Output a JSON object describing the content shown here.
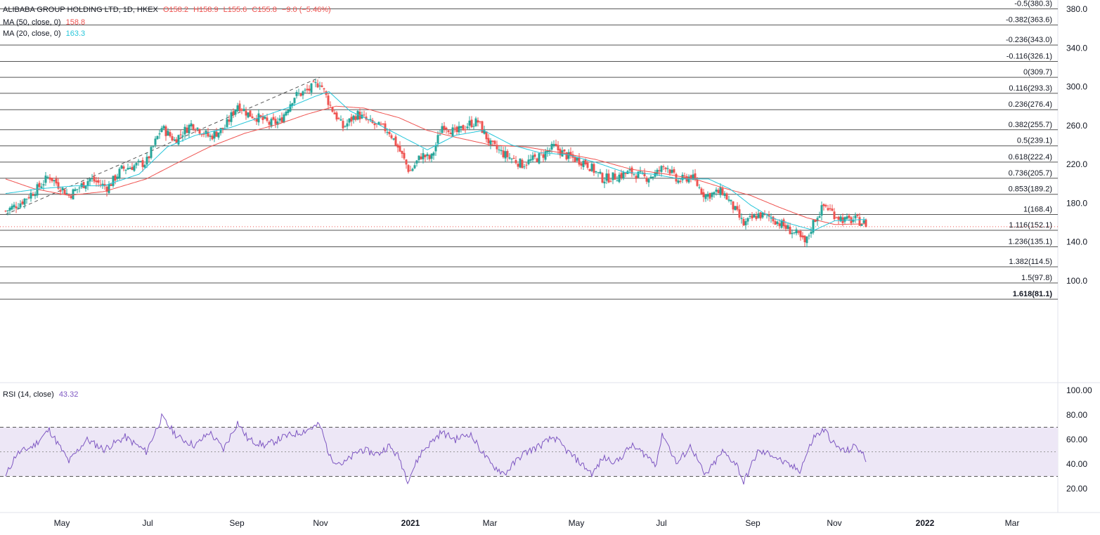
{
  "header": {
    "symbol": "ALIBABA GROUP HOLDING LTD, 1D, HKEX",
    "ohlc": {
      "o": "O158.2",
      "h": "H158.9",
      "l": "L155.6",
      "c": "C155.8",
      "chg": "−9.0 (−5.46%)"
    },
    "ma50": {
      "label": "MA (50, close, 0)",
      "value": "158.8"
    },
    "ma20": {
      "label": "MA (20, close, 0)",
      "value": "163.3"
    },
    "rsi": {
      "label": "RSI (14, close)",
      "value": "43.32"
    }
  },
  "colors": {
    "up": "#26a69a",
    "down": "#ef5350",
    "ma50": "#ef5350",
    "ma20": "#26c6da",
    "rsi": "#7e57c2",
    "rsi_band": "#ede7f6",
    "fib_line": "#555555",
    "trend_line": "#555555",
    "price_line": "#ef5350"
  },
  "chart_data": [
    {
      "type": "candlestick",
      "title": "ALIBABA GROUP HOLDING LTD, 1D, HKEX",
      "x_ticks": [
        "May",
        "Jul",
        "Sep",
        "Nov",
        "2021",
        "Mar",
        "May",
        "Jul",
        "Sep",
        "Nov",
        "2022",
        "Mar"
      ],
      "y_ticks": [
        "380.0",
        "340.0",
        "300.0",
        "260.0",
        "220.0",
        "180.0",
        "140.0",
        "100.0"
      ],
      "ylim": [
        75,
        384
      ],
      "last_price": 155.8,
      "fib_levels": [
        {
          "label": "-0.5(380.3)",
          "value": 380.3
        },
        {
          "label": "-0.382(363.6)",
          "value": 363.6
        },
        {
          "label": "-0.236(343.0)",
          "value": 343.0
        },
        {
          "label": "-0.116(326.1)",
          "value": 326.1
        },
        {
          "label": "0(309.7)",
          "value": 309.7
        },
        {
          "label": "0.116(293.3)",
          "value": 293.3
        },
        {
          "label": "0.236(276.4)",
          "value": 276.4
        },
        {
          "label": "0.382(255.7)",
          "value": 255.7
        },
        {
          "label": "0.5(239.1)",
          "value": 239.1
        },
        {
          "label": "0.618(222.4)",
          "value": 222.4
        },
        {
          "label": "0.736(205.7)",
          "value": 205.7
        },
        {
          "label": "0.853(189.2)",
          "value": 189.2
        },
        {
          "label": "1(168.4)",
          "value": 168.4
        },
        {
          "label": "1.116(152.1)",
          "value": 152.1
        },
        {
          "label": "1.236(135.1)",
          "value": 135.1
        },
        {
          "label": "1.382(114.5)",
          "value": 114.5
        },
        {
          "label": "1.5(97.8)",
          "value": 97.8
        },
        {
          "label": "1.618(81.1)",
          "value": 81.1
        }
      ],
      "trend_line": [
        [
          0,
          168.4
        ],
        [
          447,
          309.7
        ]
      ],
      "close_waypoints": [
        [
          0,
          172
        ],
        [
          20,
          180
        ],
        [
          45,
          195
        ],
        [
          62,
          208
        ],
        [
          90,
          188
        ],
        [
          120,
          205
        ],
        [
          145,
          196
        ],
        [
          165,
          215
        ],
        [
          200,
          222
        ],
        [
          222,
          258
        ],
        [
          240,
          245
        ],
        [
          265,
          262
        ],
        [
          290,
          248
        ],
        [
          312,
          258
        ],
        [
          330,
          282
        ],
        [
          345,
          272
        ],
        [
          360,
          268
        ],
        [
          375,
          262
        ],
        [
          390,
          264
        ],
        [
          410,
          290
        ],
        [
          430,
          296
        ],
        [
          447,
          305
        ],
        [
          462,
          280
        ],
        [
          480,
          258
        ],
        [
          500,
          272
        ],
        [
          520,
          262
        ],
        [
          545,
          255
        ],
        [
          560,
          235
        ],
        [
          575,
          212
        ],
        [
          592,
          230
        ],
        [
          605,
          225
        ],
        [
          622,
          262
        ],
        [
          640,
          252
        ],
        [
          660,
          262
        ],
        [
          672,
          264
        ],
        [
          690,
          240
        ],
        [
          710,
          230
        ],
        [
          735,
          220
        ],
        [
          760,
          228
        ],
        [
          780,
          238
        ],
        [
          800,
          228
        ],
        [
          825,
          222
        ],
        [
          850,
          205
        ],
        [
          870,
          208
        ],
        [
          890,
          212
        ],
        [
          910,
          206
        ],
        [
          925,
          210
        ],
        [
          940,
          220
        ],
        [
          955,
          202
        ],
        [
          975,
          208
        ],
        [
          995,
          188
        ],
        [
          1020,
          192
        ],
        [
          1035,
          176
        ],
        [
          1050,
          158
        ],
        [
          1070,
          168
        ],
        [
          1090,
          165
        ],
        [
          1110,
          155
        ],
        [
          1125,
          148
        ],
        [
          1138,
          138
        ],
        [
          1150,
          162
        ],
        [
          1165,
          178
        ],
        [
          1180,
          168
        ],
        [
          1195,
          162
        ],
        [
          1210,
          163
        ],
        [
          1225,
          158
        ]
      ],
      "ma50_waypoints": [
        [
          0,
          205
        ],
        [
          40,
          195
        ],
        [
          90,
          188
        ],
        [
          140,
          192
        ],
        [
          200,
          205
        ],
        [
          240,
          220
        ],
        [
          290,
          238
        ],
        [
          340,
          252
        ],
        [
          390,
          262
        ],
        [
          430,
          272
        ],
        [
          470,
          280
        ],
        [
          510,
          278
        ],
        [
          560,
          268
        ],
        [
          600,
          255
        ],
        [
          640,
          248
        ],
        [
          690,
          240
        ],
        [
          740,
          238
        ],
        [
          790,
          232
        ],
        [
          840,
          225
        ],
        [
          890,
          215
        ],
        [
          940,
          210
        ],
        [
          980,
          205
        ],
        [
          1020,
          196
        ],
        [
          1060,
          188
        ],
        [
          1100,
          176
        ],
        [
          1140,
          165
        ],
        [
          1180,
          158
        ],
        [
          1225,
          158.8
        ]
      ],
      "ma20_waypoints": [
        [
          0,
          190
        ],
        [
          50,
          195
        ],
        [
          100,
          198
        ],
        [
          140,
          198
        ],
        [
          190,
          210
        ],
        [
          230,
          238
        ],
        [
          270,
          250
        ],
        [
          320,
          258
        ],
        [
          360,
          268
        ],
        [
          400,
          278
        ],
        [
          440,
          290
        ],
        [
          460,
          295
        ],
        [
          490,
          275
        ],
        [
          520,
          265
        ],
        [
          560,
          250
        ],
        [
          600,
          235
        ],
        [
          640,
          250
        ],
        [
          680,
          255
        ],
        [
          720,
          240
        ],
        [
          760,
          232
        ],
        [
          800,
          230
        ],
        [
          840,
          222
        ],
        [
          880,
          212
        ],
        [
          920,
          210
        ],
        [
          960,
          205
        ],
        [
          1000,
          205
        ],
        [
          1030,
          195
        ],
        [
          1060,
          178
        ],
        [
          1090,
          165
        ],
        [
          1120,
          158
        ],
        [
          1150,
          152
        ],
        [
          1180,
          162
        ],
        [
          1225,
          163.3
        ]
      ]
    },
    {
      "type": "line",
      "title": "RSI (14, close)",
      "y_ticks": [
        "100.00",
        "80.00",
        "60.00",
        "40.00",
        "20.00"
      ],
      "ylim": [
        5,
        105
      ],
      "bands": {
        "upper": 70,
        "middle": 50,
        "lower": 30
      },
      "last_value": 43.32,
      "waypoints": [
        [
          0,
          30
        ],
        [
          15,
          48
        ],
        [
          40,
          55
        ],
        [
          62,
          68
        ],
        [
          90,
          42
        ],
        [
          115,
          60
        ],
        [
          140,
          52
        ],
        [
          170,
          62
        ],
        [
          200,
          50
        ],
        [
          222,
          78
        ],
        [
          245,
          62
        ],
        [
          270,
          55
        ],
        [
          290,
          66
        ],
        [
          310,
          52
        ],
        [
          330,
          74
        ],
        [
          345,
          60
        ],
        [
          370,
          55
        ],
        [
          395,
          62
        ],
        [
          420,
          66
        ],
        [
          447,
          72
        ],
        [
          462,
          45
        ],
        [
          480,
          40
        ],
        [
          505,
          52
        ],
        [
          530,
          48
        ],
        [
          545,
          55
        ],
        [
          560,
          45
        ],
        [
          572,
          27
        ],
        [
          592,
          50
        ],
        [
          620,
          66
        ],
        [
          640,
          60
        ],
        [
          660,
          65
        ],
        [
          690,
          40
        ],
        [
          710,
          32
        ],
        [
          735,
          48
        ],
        [
          760,
          55
        ],
        [
          780,
          62
        ],
        [
          800,
          50
        ],
        [
          835,
          32
        ],
        [
          850,
          45
        ],
        [
          870,
          42
        ],
        [
          890,
          55
        ],
        [
          910,
          48
        ],
        [
          925,
          40
        ],
        [
          935,
          65
        ],
        [
          955,
          40
        ],
        [
          975,
          55
        ],
        [
          995,
          30
        ],
        [
          1020,
          50
        ],
        [
          1040,
          40
        ],
        [
          1050,
          25
        ],
        [
          1070,
          50
        ],
        [
          1090,
          48
        ],
        [
          1110,
          40
        ],
        [
          1130,
          35
        ],
        [
          1150,
          62
        ],
        [
          1165,
          68
        ],
        [
          1180,
          55
        ],
        [
          1195,
          50
        ],
        [
          1210,
          55
        ],
        [
          1225,
          43.32
        ]
      ]
    }
  ]
}
